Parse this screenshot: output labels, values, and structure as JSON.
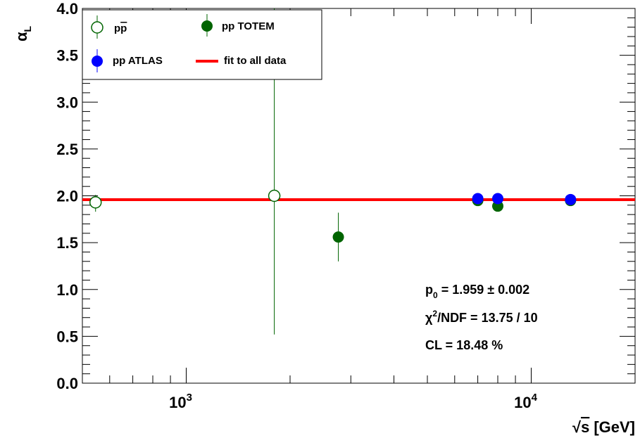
{
  "chart_data": {
    "type": "scatter",
    "xlabel": "√s [GeV]",
    "xlabel_parts": {
      "radical": "√",
      "symbol": "s",
      "unit": "[GeV]"
    },
    "ylabel": "α_L",
    "ylabel_parts": {
      "symbol": "α",
      "subscript": "L"
    },
    "x_scale": "log",
    "xlim": [
      500,
      20000
    ],
    "ylim": [
      0.0,
      4.0
    ],
    "y_ticks": [
      "0.0",
      "0.5",
      "1.0",
      "1.5",
      "2.0",
      "2.5",
      "3.0",
      "3.5",
      "4.0"
    ],
    "x_major_ticks": [
      {
        "value": 1000,
        "base": "10",
        "exp": "3"
      },
      {
        "value": 10000,
        "base": "10",
        "exp": "4"
      }
    ],
    "grid": false,
    "legend_placement": "top-left",
    "series": [
      {
        "name": "pp̄",
        "name_parts": {
          "base": "p",
          "over": "p"
        },
        "marker": "open-circle",
        "color": "#006400",
        "points": [
          {
            "x": 546,
            "y": 1.93,
            "yerr_low": 0.1,
            "yerr_high": 0.08
          },
          {
            "x": 1800,
            "y": 2.0,
            "yerr_low": 1.48,
            "yerr_high": 2.0
          }
        ]
      },
      {
        "name": "pp TOTEM",
        "marker": "filled-circle",
        "color": "#006400",
        "points": [
          {
            "x": 2760,
            "y": 1.56,
            "yerr_low": 0.26,
            "yerr_high": 0.26
          },
          {
            "x": 7000,
            "y": 1.95,
            "yerr_low": 0.01,
            "yerr_high": 0.01
          },
          {
            "x": 8000,
            "y": 1.89,
            "yerr_low": 0.01,
            "yerr_high": 0.01
          },
          {
            "x": 13000,
            "y": 1.95,
            "yerr_low": 0.01,
            "yerr_high": 0.01
          }
        ]
      },
      {
        "name": "pp ATLAS",
        "marker": "filled-circle",
        "color": "#0000ff",
        "points": [
          {
            "x": 7000,
            "y": 1.97,
            "yerr_low": 0.01,
            "yerr_high": 0.01
          },
          {
            "x": 8000,
            "y": 1.97,
            "yerr_low": 0.01,
            "yerr_high": 0.01
          },
          {
            "x": 13000,
            "y": 1.96,
            "yerr_low": 0.01,
            "yerr_high": 0.01
          }
        ]
      }
    ],
    "fit": {
      "name": "fit to all data",
      "color": "#ff0000",
      "y": 1.959
    },
    "stats": {
      "p0_sym": "p",
      "p0_sub": "0",
      "p0_rest": "= 1.959 ± 0.002",
      "chi_sym": "χ",
      "chi_sup": "2",
      "chi_rest": "/NDF = 13.75 / 10",
      "cl": "CL = 18.48 %"
    }
  }
}
